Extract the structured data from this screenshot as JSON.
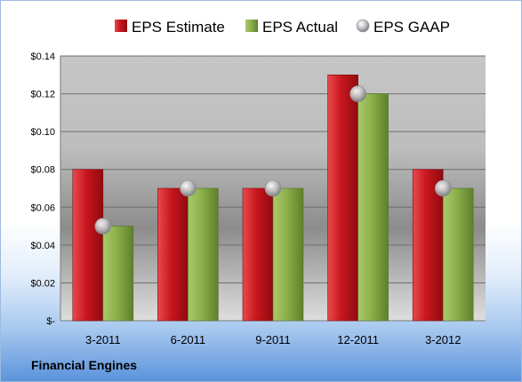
{
  "footer_label": "Financial Engines",
  "colors": {
    "estimate": "#c8161d",
    "actual": "#8cb04a",
    "gaap": "#c7c9cc"
  },
  "chart_data": {
    "type": "bar",
    "title": "",
    "xlabel": "",
    "ylabel": "",
    "categories": [
      "3-2011",
      "6-2011",
      "9-2011",
      "12-2011",
      "3-2012"
    ],
    "series": [
      {
        "name": "EPS Estimate",
        "kind": "bar",
        "values": [
          0.08,
          0.07,
          0.07,
          0.13,
          0.08
        ]
      },
      {
        "name": "EPS Actual",
        "kind": "bar",
        "values": [
          0.05,
          0.07,
          0.07,
          0.12,
          0.07
        ]
      },
      {
        "name": "EPS GAAP",
        "kind": "marker",
        "values": [
          0.05,
          0.07,
          0.07,
          0.12,
          0.07
        ]
      }
    ],
    "ylim": [
      0,
      0.14
    ],
    "yticks": [
      0,
      0.02,
      0.04,
      0.06,
      0.08,
      0.1,
      0.12,
      0.14
    ],
    "ytick_labels": [
      "$-",
      "$0.02",
      "$0.04",
      "$0.06",
      "$0.08",
      "$0.10",
      "$0.12",
      "$0.14"
    ],
    "grid": true,
    "legend": "top"
  }
}
